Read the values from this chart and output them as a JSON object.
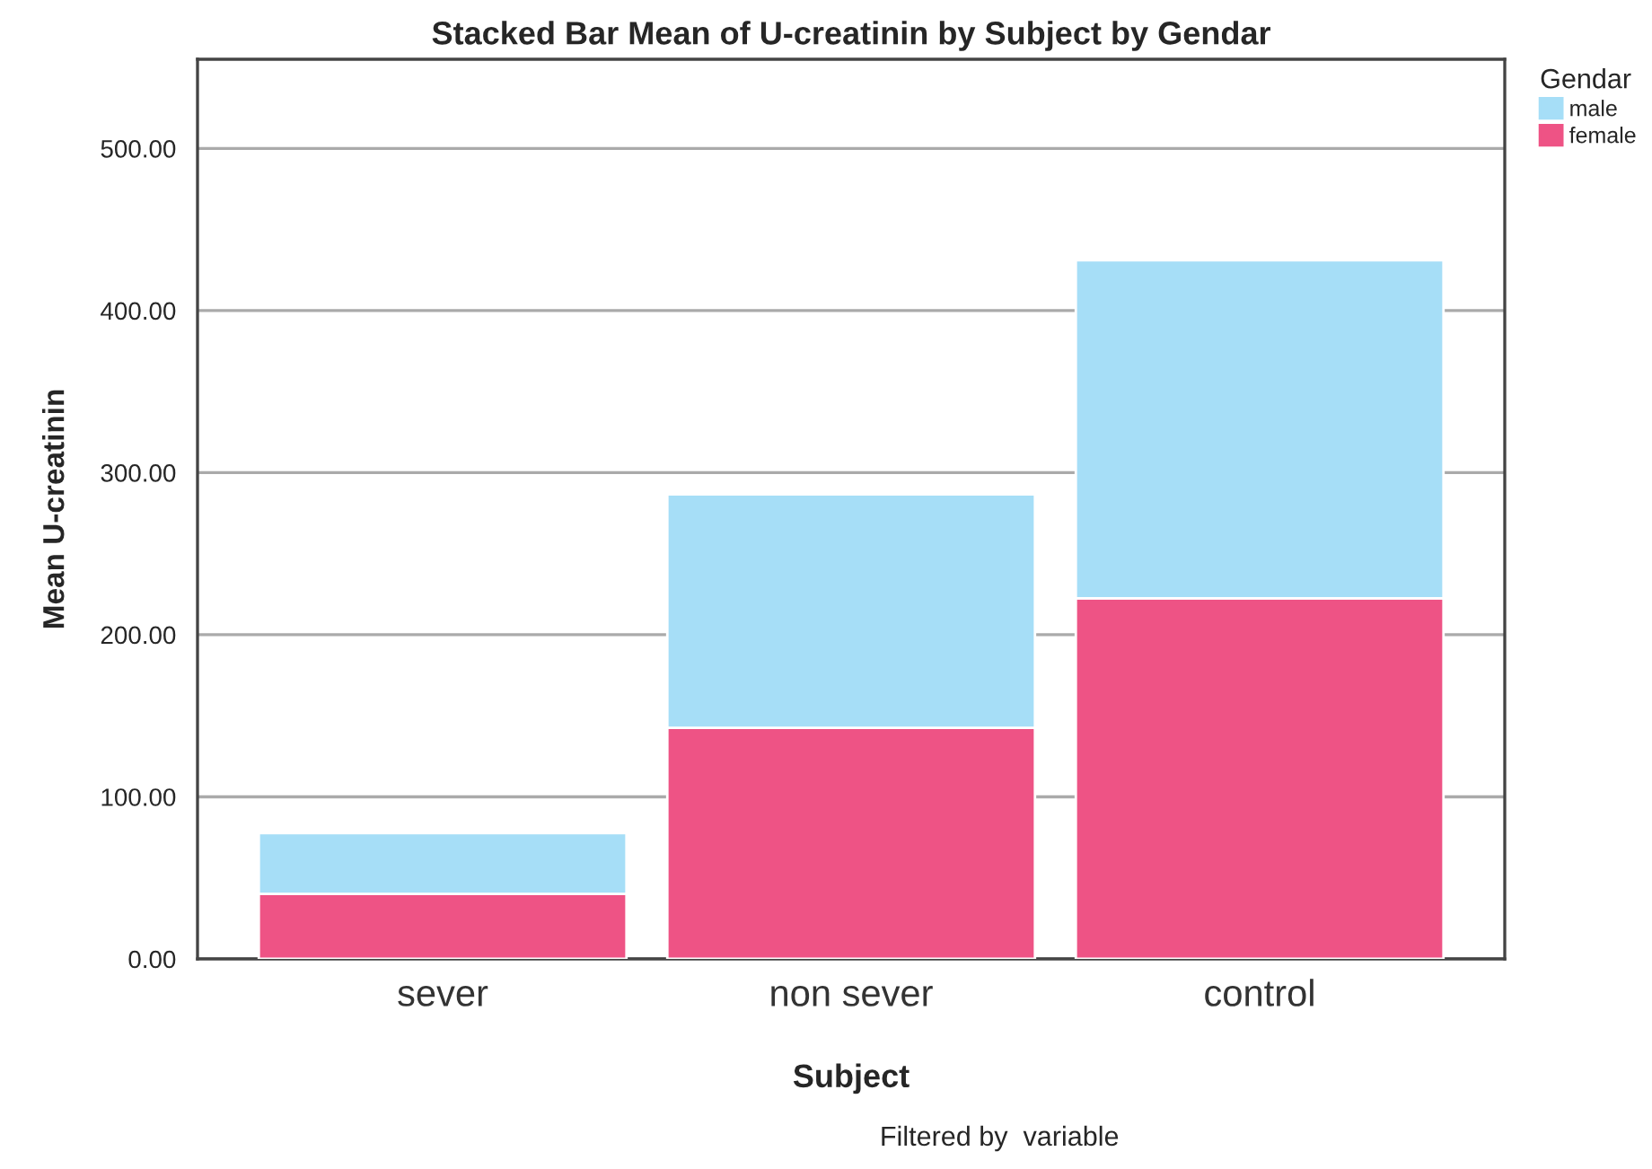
{
  "chart_data": {
    "type": "bar",
    "title": "Stacked Bar Mean of U-creatinin by Subject by Gendar",
    "xlabel": "Subject",
    "ylabel": "Mean U-creatinin",
    "legend_title": "Gendar",
    "categories": [
      "sever",
      "non sever",
      "control"
    ],
    "series": [
      {
        "name": "female",
        "color": "#ee5385",
        "values": [
          40.1,
          142.5,
          222.4
        ]
      },
      {
        "name": "male",
        "color": "#a6def7",
        "values": [
          37.5,
          144.1,
          208.6
        ]
      }
    ],
    "stacked": true,
    "ylim": [
      0,
      555
    ],
    "yticks": [
      {
        "value": 0,
        "label": "0.00"
      },
      {
        "value": 100,
        "label": "100.00"
      },
      {
        "value": 200,
        "label": "200.00"
      },
      {
        "value": 300,
        "label": "300.00"
      },
      {
        "value": 400,
        "label": "400.00"
      },
      {
        "value": 500,
        "label": "500.00"
      }
    ],
    "grid": "y",
    "legend": "top right",
    "annotations": [
      "Filtered by  variable"
    ]
  }
}
